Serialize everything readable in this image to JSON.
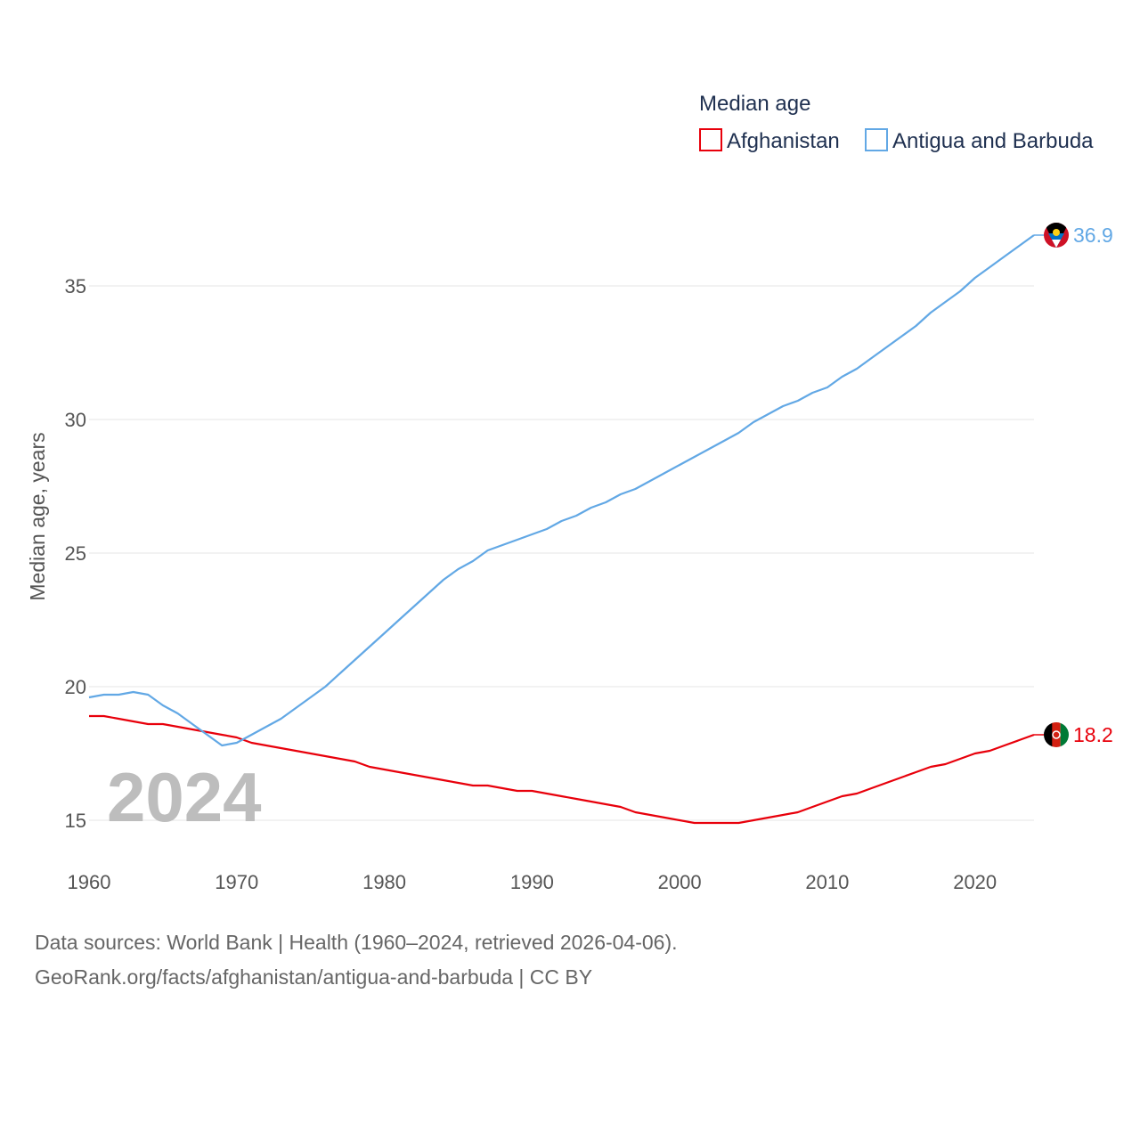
{
  "chart_data": {
    "type": "line",
    "title": "Median age",
    "ylabel": "Median age, years",
    "xlabel": "",
    "xlim": [
      1960,
      2024
    ],
    "ylim": [
      13.5,
      38
    ],
    "xticks": [
      1960,
      1970,
      1980,
      1990,
      2000,
      2010,
      2020
    ],
    "yticks": [
      15,
      20,
      25,
      30,
      35
    ],
    "grid": "horizontal",
    "legend": "top-right",
    "year_label": "2024",
    "series": [
      {
        "name": "Afghanistan",
        "color": "#e8000b",
        "end_label": "18.2",
        "flag_icon": "afghanistan-flag-icon",
        "x": [
          1960,
          1961,
          1962,
          1963,
          1964,
          1965,
          1966,
          1967,
          1968,
          1969,
          1970,
          1971,
          1972,
          1973,
          1974,
          1975,
          1976,
          1977,
          1978,
          1979,
          1980,
          1981,
          1982,
          1983,
          1984,
          1985,
          1986,
          1987,
          1988,
          1989,
          1990,
          1991,
          1992,
          1993,
          1994,
          1995,
          1996,
          1997,
          1998,
          1999,
          2000,
          2001,
          2002,
          2003,
          2004,
          2005,
          2006,
          2007,
          2008,
          2009,
          2010,
          2011,
          2012,
          2013,
          2014,
          2015,
          2016,
          2017,
          2018,
          2019,
          2020,
          2021,
          2022,
          2023,
          2024
        ],
        "values": [
          18.9,
          18.9,
          18.8,
          18.7,
          18.6,
          18.6,
          18.5,
          18.4,
          18.3,
          18.2,
          18.1,
          17.9,
          17.8,
          17.7,
          17.6,
          17.5,
          17.4,
          17.3,
          17.2,
          17.0,
          16.9,
          16.8,
          16.7,
          16.6,
          16.5,
          16.4,
          16.3,
          16.3,
          16.2,
          16.1,
          16.1,
          16.0,
          15.9,
          15.8,
          15.7,
          15.6,
          15.5,
          15.3,
          15.2,
          15.1,
          15.0,
          14.9,
          14.9,
          14.9,
          14.9,
          15.0,
          15.1,
          15.2,
          15.3,
          15.5,
          15.7,
          15.9,
          16.0,
          16.2,
          16.4,
          16.6,
          16.8,
          17.0,
          17.1,
          17.3,
          17.5,
          17.6,
          17.8,
          18.0,
          18.2
        ]
      },
      {
        "name": "Antigua and Barbuda",
        "color": "#62a8e5",
        "end_label": "36.9",
        "flag_icon": "antigua-and-barbuda-flag-icon",
        "x": [
          1960,
          1961,
          1962,
          1963,
          1964,
          1965,
          1966,
          1967,
          1968,
          1969,
          1970,
          1971,
          1972,
          1973,
          1974,
          1975,
          1976,
          1977,
          1978,
          1979,
          1980,
          1981,
          1982,
          1983,
          1984,
          1985,
          1986,
          1987,
          1988,
          1989,
          1990,
          1991,
          1992,
          1993,
          1994,
          1995,
          1996,
          1997,
          1998,
          1999,
          2000,
          2001,
          2002,
          2003,
          2004,
          2005,
          2006,
          2007,
          2008,
          2009,
          2010,
          2011,
          2012,
          2013,
          2014,
          2015,
          2016,
          2017,
          2018,
          2019,
          2020,
          2021,
          2022,
          2023,
          2024
        ],
        "values": [
          19.6,
          19.7,
          19.7,
          19.8,
          19.7,
          19.3,
          19.0,
          18.6,
          18.2,
          17.8,
          17.9,
          18.2,
          18.5,
          18.8,
          19.2,
          19.6,
          20.0,
          20.5,
          21.0,
          21.5,
          22.0,
          22.5,
          23.0,
          23.5,
          24.0,
          24.4,
          24.7,
          25.1,
          25.3,
          25.5,
          25.7,
          25.9,
          26.2,
          26.4,
          26.7,
          26.9,
          27.2,
          27.4,
          27.7,
          28.0,
          28.3,
          28.6,
          28.9,
          29.2,
          29.5,
          29.9,
          30.2,
          30.5,
          30.7,
          31.0,
          31.2,
          31.6,
          31.9,
          32.3,
          32.7,
          33.1,
          33.5,
          34.0,
          34.4,
          34.8,
          35.3,
          35.7,
          36.1,
          36.5,
          36.9
        ]
      }
    ]
  },
  "source": {
    "line1": "Data sources: World Bank | Health (1960–2024, retrieved 2026-04-06).",
    "line2": "GeoRank.org/facts/afghanistan/antigua-and-barbuda | CC BY"
  }
}
